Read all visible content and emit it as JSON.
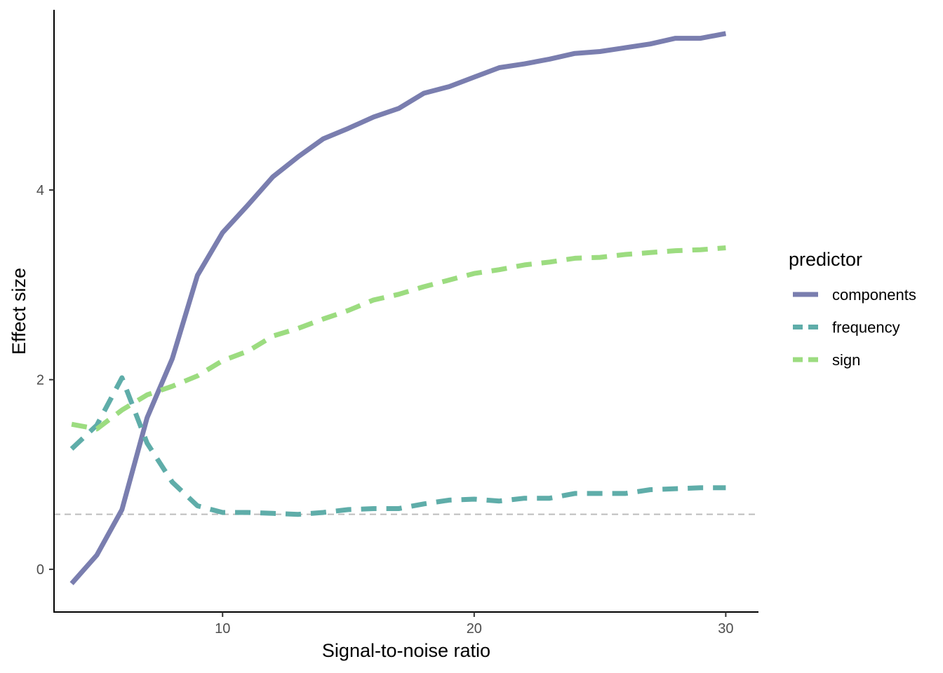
{
  "chart_data": {
    "type": "line",
    "title": "",
    "xlabel": "Signal-to-noise ratio",
    "ylabel": "Effect size",
    "xlim": [
      3.3,
      31.3
    ],
    "ylim": [
      -0.45,
      5.9
    ],
    "x_ticks": [
      10,
      20,
      30
    ],
    "y_ticks": [
      0,
      2,
      4
    ],
    "grid": false,
    "reference_line": {
      "y": 0.58,
      "style": "dashed",
      "color": "#bdbdbd"
    },
    "legend": {
      "title": "predictor",
      "position": "right"
    },
    "series": [
      {
        "name": "components",
        "color": "#7a7eaf",
        "dash": "solid",
        "x": [
          4,
          5,
          6,
          7,
          8,
          9,
          10,
          11,
          12,
          13,
          14,
          15,
          16,
          17,
          18,
          19,
          20,
          21,
          22,
          23,
          24,
          25,
          26,
          27,
          28,
          29,
          30
        ],
        "y": [
          -0.15,
          0.15,
          0.63,
          1.6,
          2.22,
          3.1,
          3.55,
          3.84,
          4.14,
          4.35,
          4.54,
          4.65,
          4.77,
          4.86,
          5.02,
          5.09,
          5.19,
          5.29,
          5.33,
          5.38,
          5.44,
          5.46,
          5.5,
          5.54,
          5.6,
          5.6,
          5.65
        ]
      },
      {
        "name": "frequency",
        "color": "#5fada9",
        "dash": "dashed",
        "x": [
          4,
          5,
          6,
          7,
          8,
          9,
          10,
          11,
          12,
          13,
          14,
          15,
          16,
          17,
          18,
          19,
          20,
          21,
          22,
          23,
          24,
          25,
          26,
          27,
          28,
          29,
          30
        ],
        "y": [
          1.27,
          1.52,
          2.02,
          1.33,
          0.92,
          0.67,
          0.6,
          0.6,
          0.59,
          0.58,
          0.6,
          0.63,
          0.64,
          0.64,
          0.69,
          0.73,
          0.74,
          0.72,
          0.75,
          0.75,
          0.8,
          0.8,
          0.8,
          0.84,
          0.85,
          0.86,
          0.86
        ]
      },
      {
        "name": "sign",
        "color": "#9cdc80",
        "dash": "dashed",
        "x": [
          4,
          5,
          6,
          7,
          8,
          9,
          10,
          11,
          12,
          13,
          14,
          15,
          16,
          17,
          18,
          19,
          20,
          21,
          22,
          23,
          24,
          25,
          26,
          27,
          28,
          29,
          30
        ],
        "y": [
          1.53,
          1.48,
          1.68,
          1.84,
          1.93,
          2.04,
          2.2,
          2.3,
          2.46,
          2.54,
          2.64,
          2.73,
          2.84,
          2.9,
          2.98,
          3.05,
          3.12,
          3.16,
          3.21,
          3.24,
          3.28,
          3.29,
          3.32,
          3.34,
          3.36,
          3.37,
          3.39
        ]
      }
    ]
  }
}
